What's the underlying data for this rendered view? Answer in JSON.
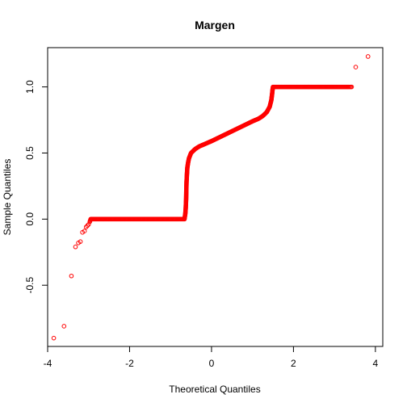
{
  "chart_data": {
    "type": "scatter",
    "title": "Margen",
    "xlabel": "Theoretical Quantiles",
    "ylabel": "Sample Quantiles",
    "xlim": [
      -4.0,
      4.18
    ],
    "ylim": [
      -0.963,
      1.297
    ],
    "xticks": [
      -4,
      -2,
      0,
      2,
      4
    ],
    "yticks": [
      -0.5,
      0.0,
      0.5,
      1.0
    ],
    "ytick_labels": [
      "-0.5",
      "0.0",
      "0.5",
      "1.0"
    ],
    "grid": false,
    "legend": "none",
    "point_color": "#FF0000",
    "series": [
      {
        "points": [
          [
            -3.85,
            -0.9
          ],
          [
            -3.6,
            -0.81
          ],
          [
            -3.42,
            -0.43
          ],
          [
            -3.32,
            -0.21
          ],
          [
            -3.25,
            -0.18
          ],
          [
            -3.2,
            -0.17
          ],
          [
            -3.15,
            -0.1
          ],
          [
            -3.1,
            -0.09
          ],
          [
            -3.06,
            -0.06
          ],
          [
            -3.03,
            -0.05
          ],
          [
            -3.0,
            -0.04
          ],
          [
            -2.97,
            -0.02
          ],
          [
            -2.95,
            0.0
          ],
          [
            -2.8,
            0.0
          ],
          [
            -2.6,
            0.0
          ],
          [
            -2.4,
            0.0
          ],
          [
            -2.2,
            0.0
          ],
          [
            -2.0,
            0.0
          ],
          [
            -1.8,
            0.0
          ],
          [
            -1.6,
            0.0
          ],
          [
            -1.4,
            0.0
          ],
          [
            -1.2,
            0.0
          ],
          [
            -1.0,
            0.0
          ],
          [
            -0.8,
            0.0
          ],
          [
            -0.66,
            0.0
          ],
          [
            -0.64,
            0.04
          ],
          [
            -0.63,
            0.08
          ],
          [
            -0.62,
            0.15
          ],
          [
            -0.615,
            0.22
          ],
          [
            -0.61,
            0.28
          ],
          [
            -0.6,
            0.34
          ],
          [
            -0.59,
            0.39
          ],
          [
            -0.57,
            0.43
          ],
          [
            -0.55,
            0.46
          ],
          [
            -0.5,
            0.5
          ],
          [
            -0.4,
            0.53
          ],
          [
            -0.3,
            0.55
          ],
          [
            -0.15,
            0.57
          ],
          [
            0.0,
            0.59
          ],
          [
            0.2,
            0.62
          ],
          [
            0.4,
            0.65
          ],
          [
            0.6,
            0.68
          ],
          [
            0.8,
            0.71
          ],
          [
            1.0,
            0.74
          ],
          [
            1.15,
            0.76
          ],
          [
            1.25,
            0.78
          ],
          [
            1.35,
            0.81
          ],
          [
            1.42,
            0.85
          ],
          [
            1.46,
            0.9
          ],
          [
            1.48,
            0.95
          ],
          [
            1.49,
            0.98
          ],
          [
            1.5,
            1.0
          ],
          [
            1.8,
            1.0
          ],
          [
            2.1,
            1.0
          ],
          [
            2.4,
            1.0
          ],
          [
            2.7,
            1.0
          ],
          [
            2.9,
            1.0
          ],
          [
            3.05,
            1.0
          ],
          [
            3.15,
            1.0
          ],
          [
            3.25,
            1.0
          ],
          [
            3.35,
            1.0
          ],
          [
            3.42,
            1.0
          ],
          [
            3.52,
            1.15
          ],
          [
            3.82,
            1.23
          ]
        ]
      }
    ]
  }
}
